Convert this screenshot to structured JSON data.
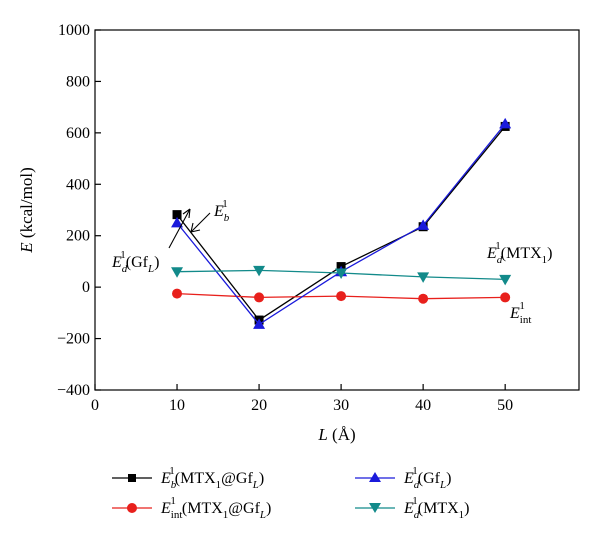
{
  "chart_data": {
    "type": "line",
    "title": "",
    "xlabel": "L (Å)",
    "ylabel": "E (kcal/mol)",
    "xlim": [
      0,
      59
    ],
    "ylim": [
      -400,
      1000
    ],
    "xticks": [
      0,
      10,
      20,
      30,
      40,
      50
    ],
    "yticks": [
      -400,
      -200,
      0,
      200,
      400,
      600,
      800,
      1000
    ],
    "x": [
      10,
      20,
      30,
      40,
      50
    ],
    "series": [
      {
        "name": "E_b^1(MTX_1@Gf_L)",
        "color": "#000000",
        "marker": "square",
        "values": [
          282,
          -128,
          80,
          235,
          625
        ]
      },
      {
        "name": "E_int^1(MTX_1@Gf_L)",
        "color": "#e8201c",
        "marker": "circle",
        "values": [
          -25,
          -40,
          -35,
          -45,
          -40
        ]
      },
      {
        "name": "E_d^1(Gf_L)",
        "color": "#1a1adb",
        "marker": "triangle-up",
        "values": [
          250,
          -145,
          60,
          240,
          635
        ]
      },
      {
        "name": "E_d^1(MTX_1)",
        "color": "#128a8a",
        "marker": "triangle-down",
        "values": [
          60,
          65,
          55,
          40,
          30
        ]
      }
    ],
    "annotations": [
      {
        "text": "E_b^1"
      },
      {
        "text": "E_d^1(Gf_L)"
      },
      {
        "text": "E_d^1(MTX_1)"
      },
      {
        "text": "E_int^1"
      }
    ],
    "legend_position": "bottom",
    "grid": false
  }
}
